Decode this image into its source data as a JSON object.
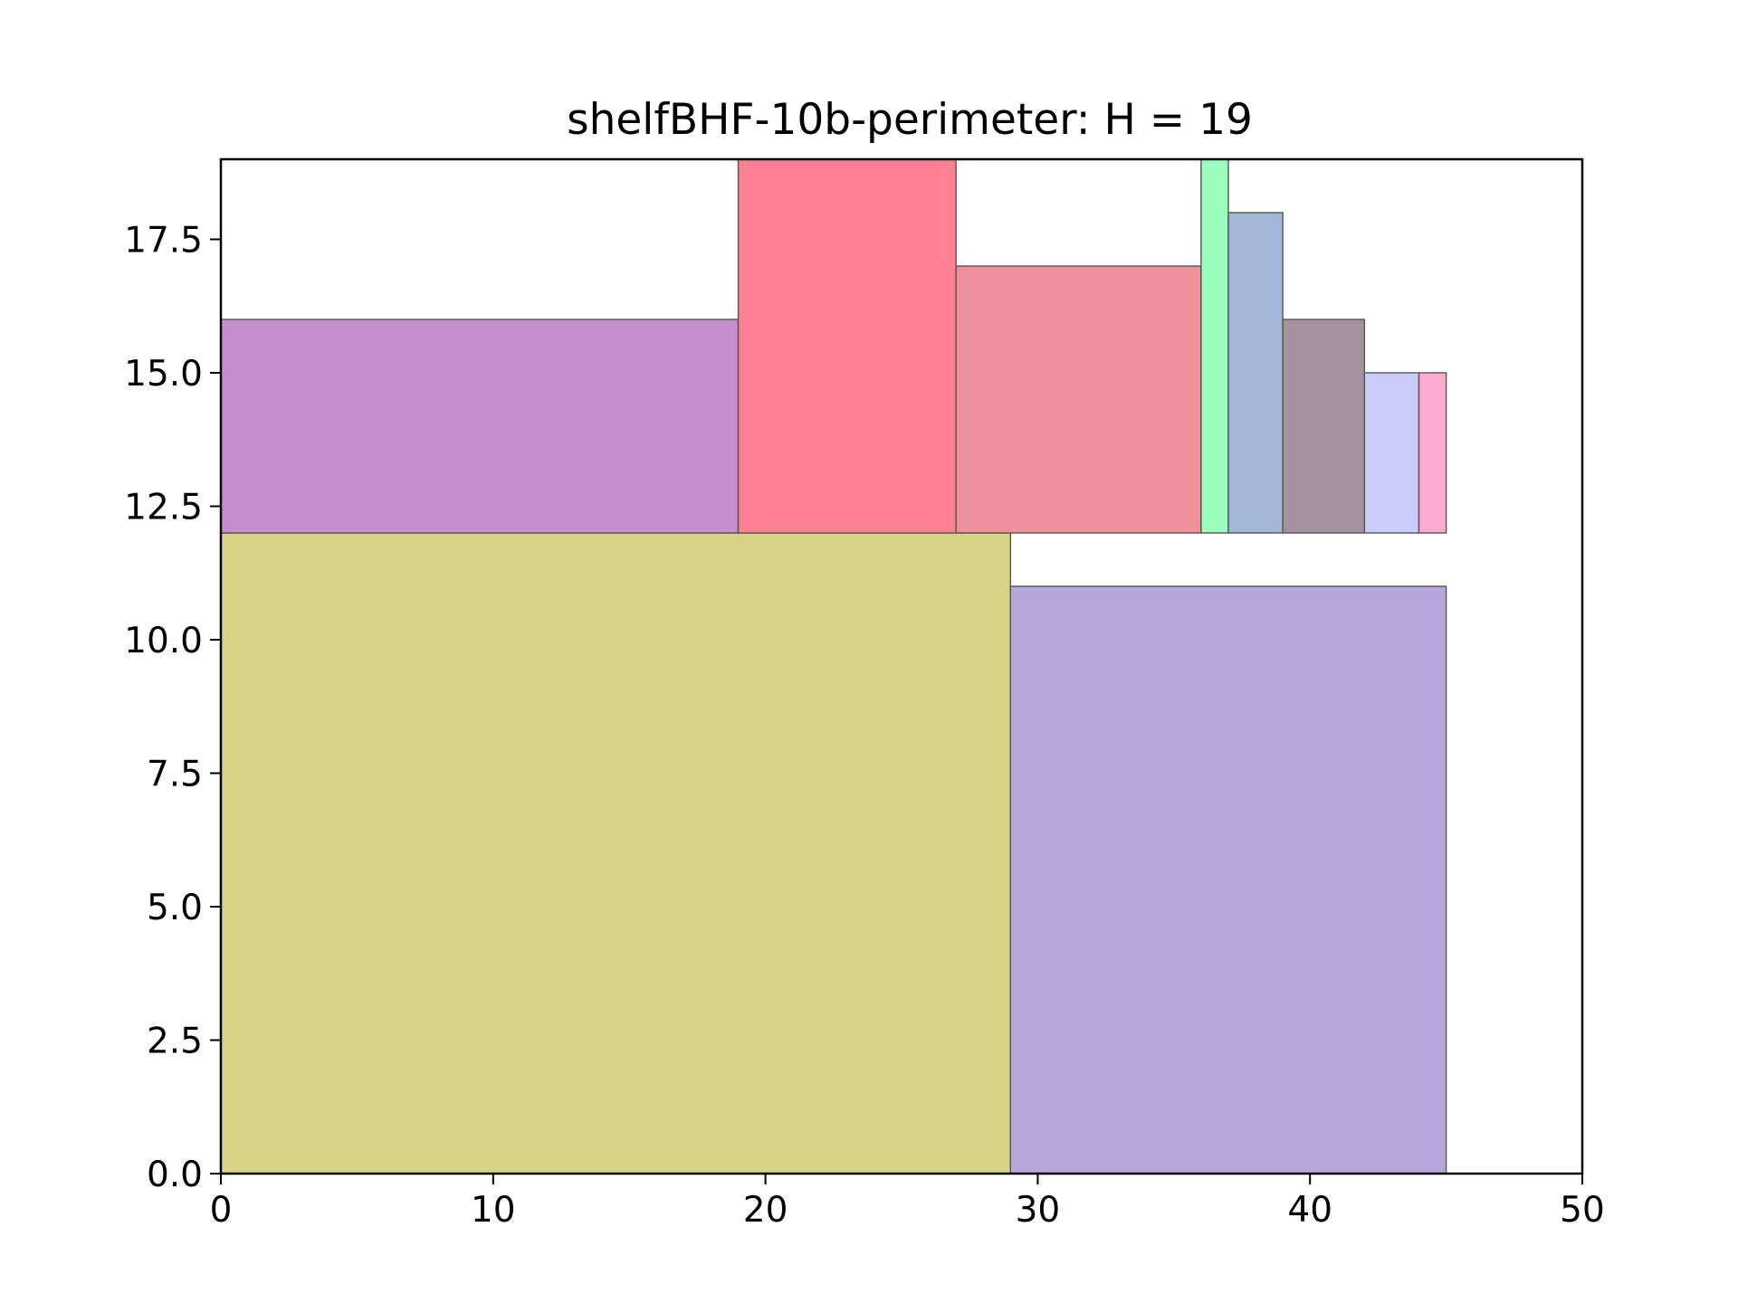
{
  "chart_data": {
    "type": "rectangles",
    "title": "shelfBHF-10b-perimeter: H = 19",
    "xlabel": "",
    "ylabel": "",
    "xlim": [
      0,
      50
    ],
    "ylim": [
      0,
      19
    ],
    "xticks": [
      0,
      10,
      20,
      30,
      40,
      50
    ],
    "xtick_labels": [
      "0",
      "10",
      "20",
      "30",
      "40",
      "50"
    ],
    "yticks": [
      0,
      2.5,
      5,
      7.5,
      10,
      12.5,
      15,
      17.5
    ],
    "ytick_labels": [
      "0.0",
      "2.5",
      "5.0",
      "7.5",
      "10.0",
      "12.5",
      "15.0",
      "17.5"
    ],
    "grid": false,
    "rectangles": [
      {
        "x": 0,
        "y": 0,
        "w": 29,
        "h": 12,
        "color": "#d8d486"
      },
      {
        "x": 29,
        "y": 0,
        "w": 16,
        "h": 11,
        "color": "#b6a6dc"
      },
      {
        "x": 0,
        "y": 12,
        "w": 19,
        "h": 4,
        "color": "#c68ecf"
      },
      {
        "x": 19,
        "y": 12,
        "w": 8,
        "h": 7,
        "color": "#ff8093"
      },
      {
        "x": 27,
        "y": 12,
        "w": 9,
        "h": 5,
        "color": "#ee9099"
      },
      {
        "x": 36,
        "y": 12,
        "w": 1,
        "h": 7,
        "color": "#99ffbd"
      },
      {
        "x": 37,
        "y": 12,
        "w": 2,
        "h": 6,
        "color": "#a3b6d6"
      },
      {
        "x": 39,
        "y": 12,
        "w": 3,
        "h": 4,
        "color": "#a6919f"
      },
      {
        "x": 42,
        "y": 12,
        "w": 2,
        "h": 3,
        "color": "#ccccfa"
      },
      {
        "x": 44,
        "y": 12,
        "w": 1,
        "h": 3,
        "color": "#ffaad0"
      }
    ]
  }
}
